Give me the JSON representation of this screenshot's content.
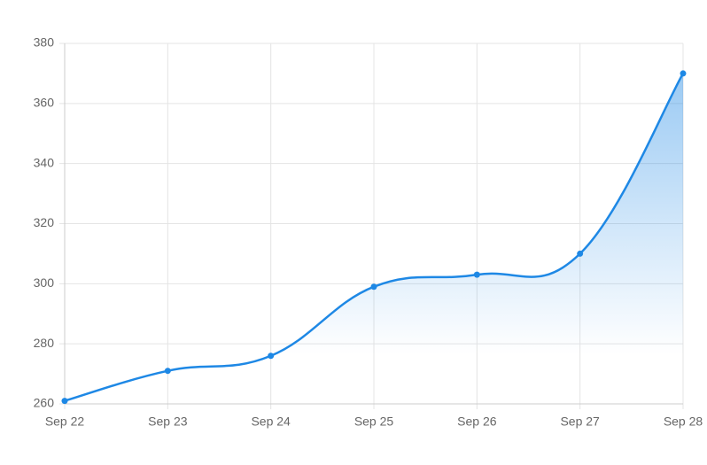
{
  "chart_data": {
    "type": "line",
    "categories": [
      "Sep 22",
      "Sep 23",
      "Sep 24",
      "Sep 25",
      "Sep 26",
      "Sep 27",
      "Sep 28"
    ],
    "series": [
      {
        "color": "#1e88e5",
        "values": [
          261,
          271,
          276,
          299,
          303,
          310,
          370
        ]
      }
    ],
    "ylim": [
      260,
      380
    ],
    "yticks": [
      260,
      280,
      300,
      320,
      340,
      360,
      380
    ],
    "grid": true,
    "area": true
  }
}
